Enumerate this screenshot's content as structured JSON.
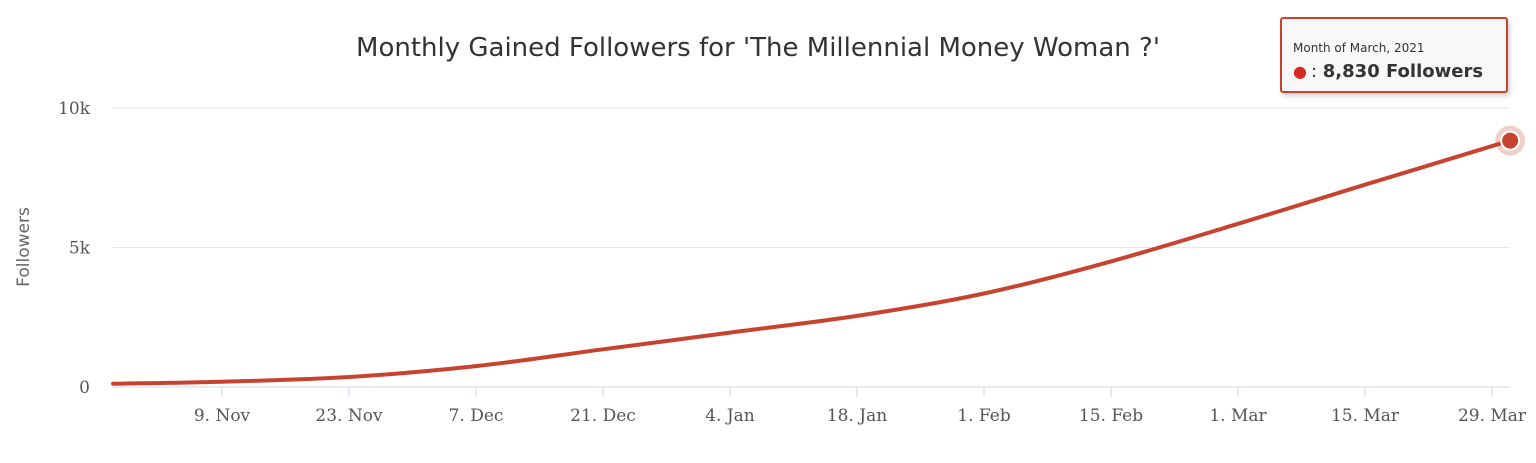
{
  "chart_data": {
    "type": "line",
    "title": "Monthly Gained Followers for 'The Millennial Money Woman ?'",
    "ylabel": "Followers",
    "xlabel": "",
    "ylim": [
      0,
      10000
    ],
    "y_ticks": [
      {
        "value": 0,
        "label": "0"
      },
      {
        "value": 5000,
        "label": "5k"
      },
      {
        "value": 10000,
        "label": "10k"
      }
    ],
    "x_ticks": [
      "9. Nov",
      "23. Nov",
      "7. Dec",
      "21. Dec",
      "4. Jan",
      "18. Jan",
      "1. Feb",
      "15. Feb",
      "1. Mar",
      "15. Mar",
      "29. Mar"
    ],
    "grid": true,
    "series": [
      {
        "color": "#c8432f",
        "points": [
          {
            "x": "2020-10-28",
            "y": 120
          },
          {
            "x": "2020-11-09",
            "y": 190
          },
          {
            "x": "2020-11-23",
            "y": 360
          },
          {
            "x": "2020-12-07",
            "y": 750
          },
          {
            "x": "2020-12-21",
            "y": 1350
          },
          {
            "x": "2021-01-04",
            "y": 1950
          },
          {
            "x": "2021-01-18",
            "y": 2550
          },
          {
            "x": "2021-02-01",
            "y": 3350
          },
          {
            "x": "2021-02-15",
            "y": 4500
          },
          {
            "x": "2021-03-01",
            "y": 5850
          },
          {
            "x": "2021-03-15",
            "y": 7250
          },
          {
            "x": "2021-03-31",
            "y": 8830
          }
        ]
      }
    ],
    "tooltip": {
      "header": "Month of March, 2021",
      "separator": ":",
      "value": "8,830 Followers"
    }
  }
}
